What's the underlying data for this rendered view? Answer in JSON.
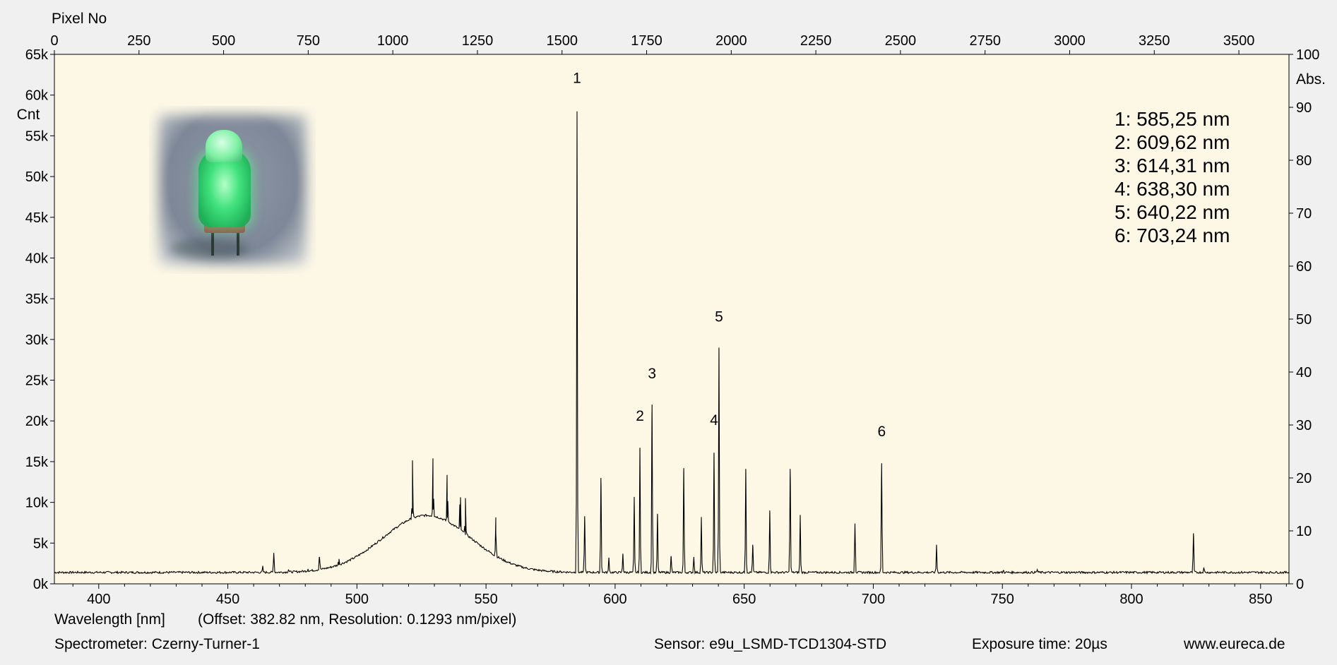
{
  "chart_data": {
    "type": "line",
    "colors": {
      "page_bg": "#f0f0f0",
      "plot_bg": "#fdf8e6",
      "line": "#000000"
    },
    "top_axis": {
      "title": "Pixel No",
      "range": [
        0,
        3648
      ],
      "ticks": [
        0,
        250,
        500,
        750,
        1000,
        1250,
        1500,
        1750,
        2000,
        2250,
        2500,
        2750,
        3000,
        3250,
        3500
      ]
    },
    "left_axis": {
      "title": "Cnt",
      "range": [
        0,
        65000
      ],
      "ticks": [
        0,
        5000,
        10000,
        15000,
        20000,
        25000,
        30000,
        35000,
        40000,
        45000,
        50000,
        55000,
        60000,
        65000
      ],
      "tick_labels": [
        "0k",
        "5k",
        "10k",
        "15k",
        "20k",
        "25k",
        "30k",
        "35k",
        "40k",
        "45k",
        "50k",
        "55k",
        "60k",
        "65k"
      ]
    },
    "right_axis": {
      "title": "Abs.",
      "range": [
        0,
        100
      ],
      "ticks": [
        0,
        10,
        20,
        30,
        40,
        50,
        60,
        70,
        80,
        90,
        100
      ]
    },
    "bottom_axis": {
      "title": "Wavelength [nm]",
      "note": "(Offset: 382.82 nm, Resolution: 0.1293 nm/pixel)",
      "range": [
        382.82,
        861.0
      ],
      "ticks": [
        400,
        450,
        500,
        550,
        600,
        650,
        700,
        750,
        800,
        850
      ]
    },
    "baseline": 1400,
    "broad_band": {
      "center": 527,
      "sigma": 17,
      "amplitude": 7000
    },
    "lines": [
      {
        "x": 463.5,
        "y": 2100
      },
      {
        "x": 467.8,
        "y": 3800
      },
      {
        "x": 473.5,
        "y": 1700
      },
      {
        "x": 481.0,
        "y": 1700
      },
      {
        "x": 485.5,
        "y": 3300
      },
      {
        "x": 493.0,
        "y": 2300
      },
      {
        "x": 521.5,
        "y": 8600
      },
      {
        "x": 529.5,
        "y": 9100
      },
      {
        "x": 535.0,
        "y": 8100
      },
      {
        "x": 540.0,
        "y": 7000
      },
      {
        "x": 542.0,
        "y": 6000
      },
      {
        "x": 553.8,
        "y": 6200
      },
      {
        "x": 585.25,
        "y": 58000
      },
      {
        "x": 588.2,
        "y": 8300
      },
      {
        "x": 594.5,
        "y": 13000
      },
      {
        "x": 597.6,
        "y": 3200
      },
      {
        "x": 603.0,
        "y": 3700
      },
      {
        "x": 607.4,
        "y": 10600
      },
      {
        "x": 609.62,
        "y": 16700
      },
      {
        "x": 614.31,
        "y": 22000
      },
      {
        "x": 616.4,
        "y": 8600
      },
      {
        "x": 621.7,
        "y": 3400
      },
      {
        "x": 626.6,
        "y": 14200
      },
      {
        "x": 630.5,
        "y": 3300
      },
      {
        "x": 633.4,
        "y": 8200
      },
      {
        "x": 638.3,
        "y": 16100
      },
      {
        "x": 640.22,
        "y": 29000
      },
      {
        "x": 650.6,
        "y": 14100
      },
      {
        "x": 653.3,
        "y": 4800
      },
      {
        "x": 659.9,
        "y": 9000
      },
      {
        "x": 667.8,
        "y": 14100
      },
      {
        "x": 671.7,
        "y": 8400
      },
      {
        "x": 692.9,
        "y": 7400
      },
      {
        "x": 703.24,
        "y": 14800
      },
      {
        "x": 724.5,
        "y": 4800
      },
      {
        "x": 750.4,
        "y": 1650
      },
      {
        "x": 763.5,
        "y": 1750
      },
      {
        "x": 824.0,
        "y": 6200
      },
      {
        "x": 828.0,
        "y": 2000
      }
    ],
    "peak_labels": [
      {
        "label": "1",
        "x": 585.25,
        "y": 61500
      },
      {
        "label": "2",
        "x": 609.62,
        "y": 20000
      },
      {
        "label": "3",
        "x": 614.31,
        "y": 25200
      },
      {
        "label": "4",
        "x": 638.3,
        "y": 19500
      },
      {
        "label": "5",
        "x": 640.22,
        "y": 32200
      },
      {
        "label": "6",
        "x": 703.24,
        "y": 18100
      }
    ],
    "legend": [
      "1: 585,25 nm",
      "2: 609,62 nm",
      "3: 614,31 nm",
      "4: 638,30 nm",
      "5: 640,22 nm",
      "6: 703,24 nm"
    ]
  },
  "footer": {
    "spectrometer": "Spectrometer: Czerny-Turner-1",
    "sensor": "Sensor: e9u_LSMD-TCD1304-STD",
    "exposure": "Exposure time: 20µs",
    "website": "www.eureca.de"
  }
}
